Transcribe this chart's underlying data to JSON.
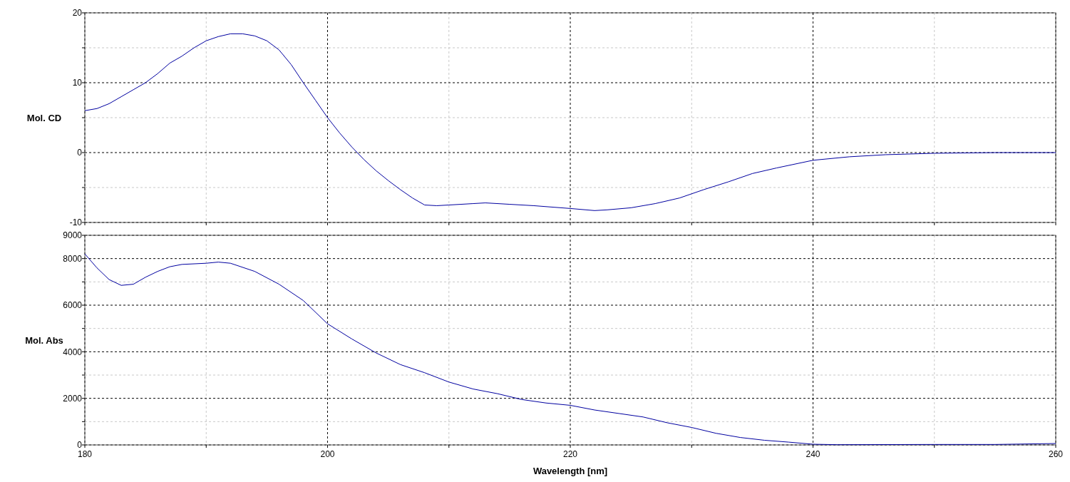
{
  "chart_data": [
    {
      "type": "line",
      "ylabel": "Mol. CD",
      "xlim": [
        180,
        260
      ],
      "xticks": [
        180,
        {
          "value": 190,
          "label": null
        },
        200,
        {
          "value": 210,
          "label": null
        },
        220,
        {
          "value": 230,
          "label": null
        },
        240,
        {
          "value": 250,
          "label": null
        },
        260
      ],
      "ylim": [
        -10,
        20
      ],
      "yticks": [
        -10,
        {
          "value": -5,
          "label": null
        },
        0,
        {
          "value": 5,
          "label": null
        },
        10,
        {
          "value": 15,
          "label": null
        },
        20
      ],
      "grid": true,
      "tick_labels": "y",
      "marker": "none",
      "series": [
        {
          "color": "#0000a0",
          "x": [
            180,
            181,
            182,
            183,
            184,
            185,
            186,
            187,
            188,
            189,
            190,
            191,
            192,
            193,
            194,
            195,
            196,
            197,
            198,
            199,
            200,
            201,
            202,
            203,
            204,
            205,
            206,
            207,
            208,
            209,
            210,
            212,
            213,
            215,
            217,
            220,
            222,
            223,
            225,
            227,
            229,
            231,
            233,
            235,
            237,
            240,
            243,
            246,
            250,
            255,
            260
          ],
          "values": [
            6,
            6.3,
            7,
            8,
            9,
            10,
            11.3,
            12.8,
            13.8,
            15,
            16,
            16.6,
            17,
            17,
            16.7,
            16,
            14.7,
            12.6,
            10,
            7.5,
            5,
            2.8,
            0.8,
            -1,
            -2.6,
            -4,
            -5.3,
            -6.5,
            -7.5,
            -7.6,
            -7.5,
            -7.3,
            -7.2,
            -7.4,
            -7.6,
            -8,
            -8.3,
            -8.2,
            -7.9,
            -7.3,
            -6.5,
            -5.3,
            -4.2,
            -3,
            -2.2,
            -1.1,
            -0.6,
            -0.3,
            -0.1,
            0,
            0
          ]
        }
      ]
    },
    {
      "type": "line",
      "ylabel": "Mol. Abs",
      "xlabel": "Wavelength [nm]",
      "xlim": [
        180,
        260
      ],
      "xticks": [
        180,
        {
          "value": 190,
          "label": null
        },
        200,
        {
          "value": 210,
          "label": null
        },
        220,
        {
          "value": 230,
          "label": null
        },
        240,
        {
          "value": 250,
          "label": null
        },
        260
      ],
      "ylim": [
        0,
        9000
      ],
      "yticks": [
        0,
        {
          "value": 1000,
          "label": null
        },
        2000,
        {
          "value": 3000,
          "label": null
        },
        4000,
        {
          "value": 5000,
          "label": null
        },
        6000,
        {
          "value": 7000,
          "label": null
        },
        8000,
        9000
      ],
      "grid": true,
      "marker": "none",
      "series": [
        {
          "color": "#0000a0",
          "x": [
            180,
            181,
            182,
            183,
            184,
            185,
            186,
            187,
            188,
            190,
            191,
            192,
            194,
            196,
            198,
            200,
            202,
            204,
            206,
            208,
            210,
            212,
            214,
            216,
            218,
            220,
            222,
            224,
            226,
            228,
            230,
            232,
            234,
            236,
            238,
            240,
            242,
            250,
            255,
            260
          ],
          "values": [
            8200,
            7600,
            7100,
            6850,
            6900,
            7200,
            7450,
            7650,
            7750,
            7800,
            7850,
            7800,
            7450,
            6900,
            6200,
            5200,
            4550,
            3950,
            3450,
            3100,
            2700,
            2400,
            2200,
            1950,
            1800,
            1700,
            1500,
            1350,
            1200,
            950,
            750,
            500,
            320,
            200,
            120,
            30,
            10,
            20,
            20,
            60
          ]
        }
      ]
    }
  ]
}
